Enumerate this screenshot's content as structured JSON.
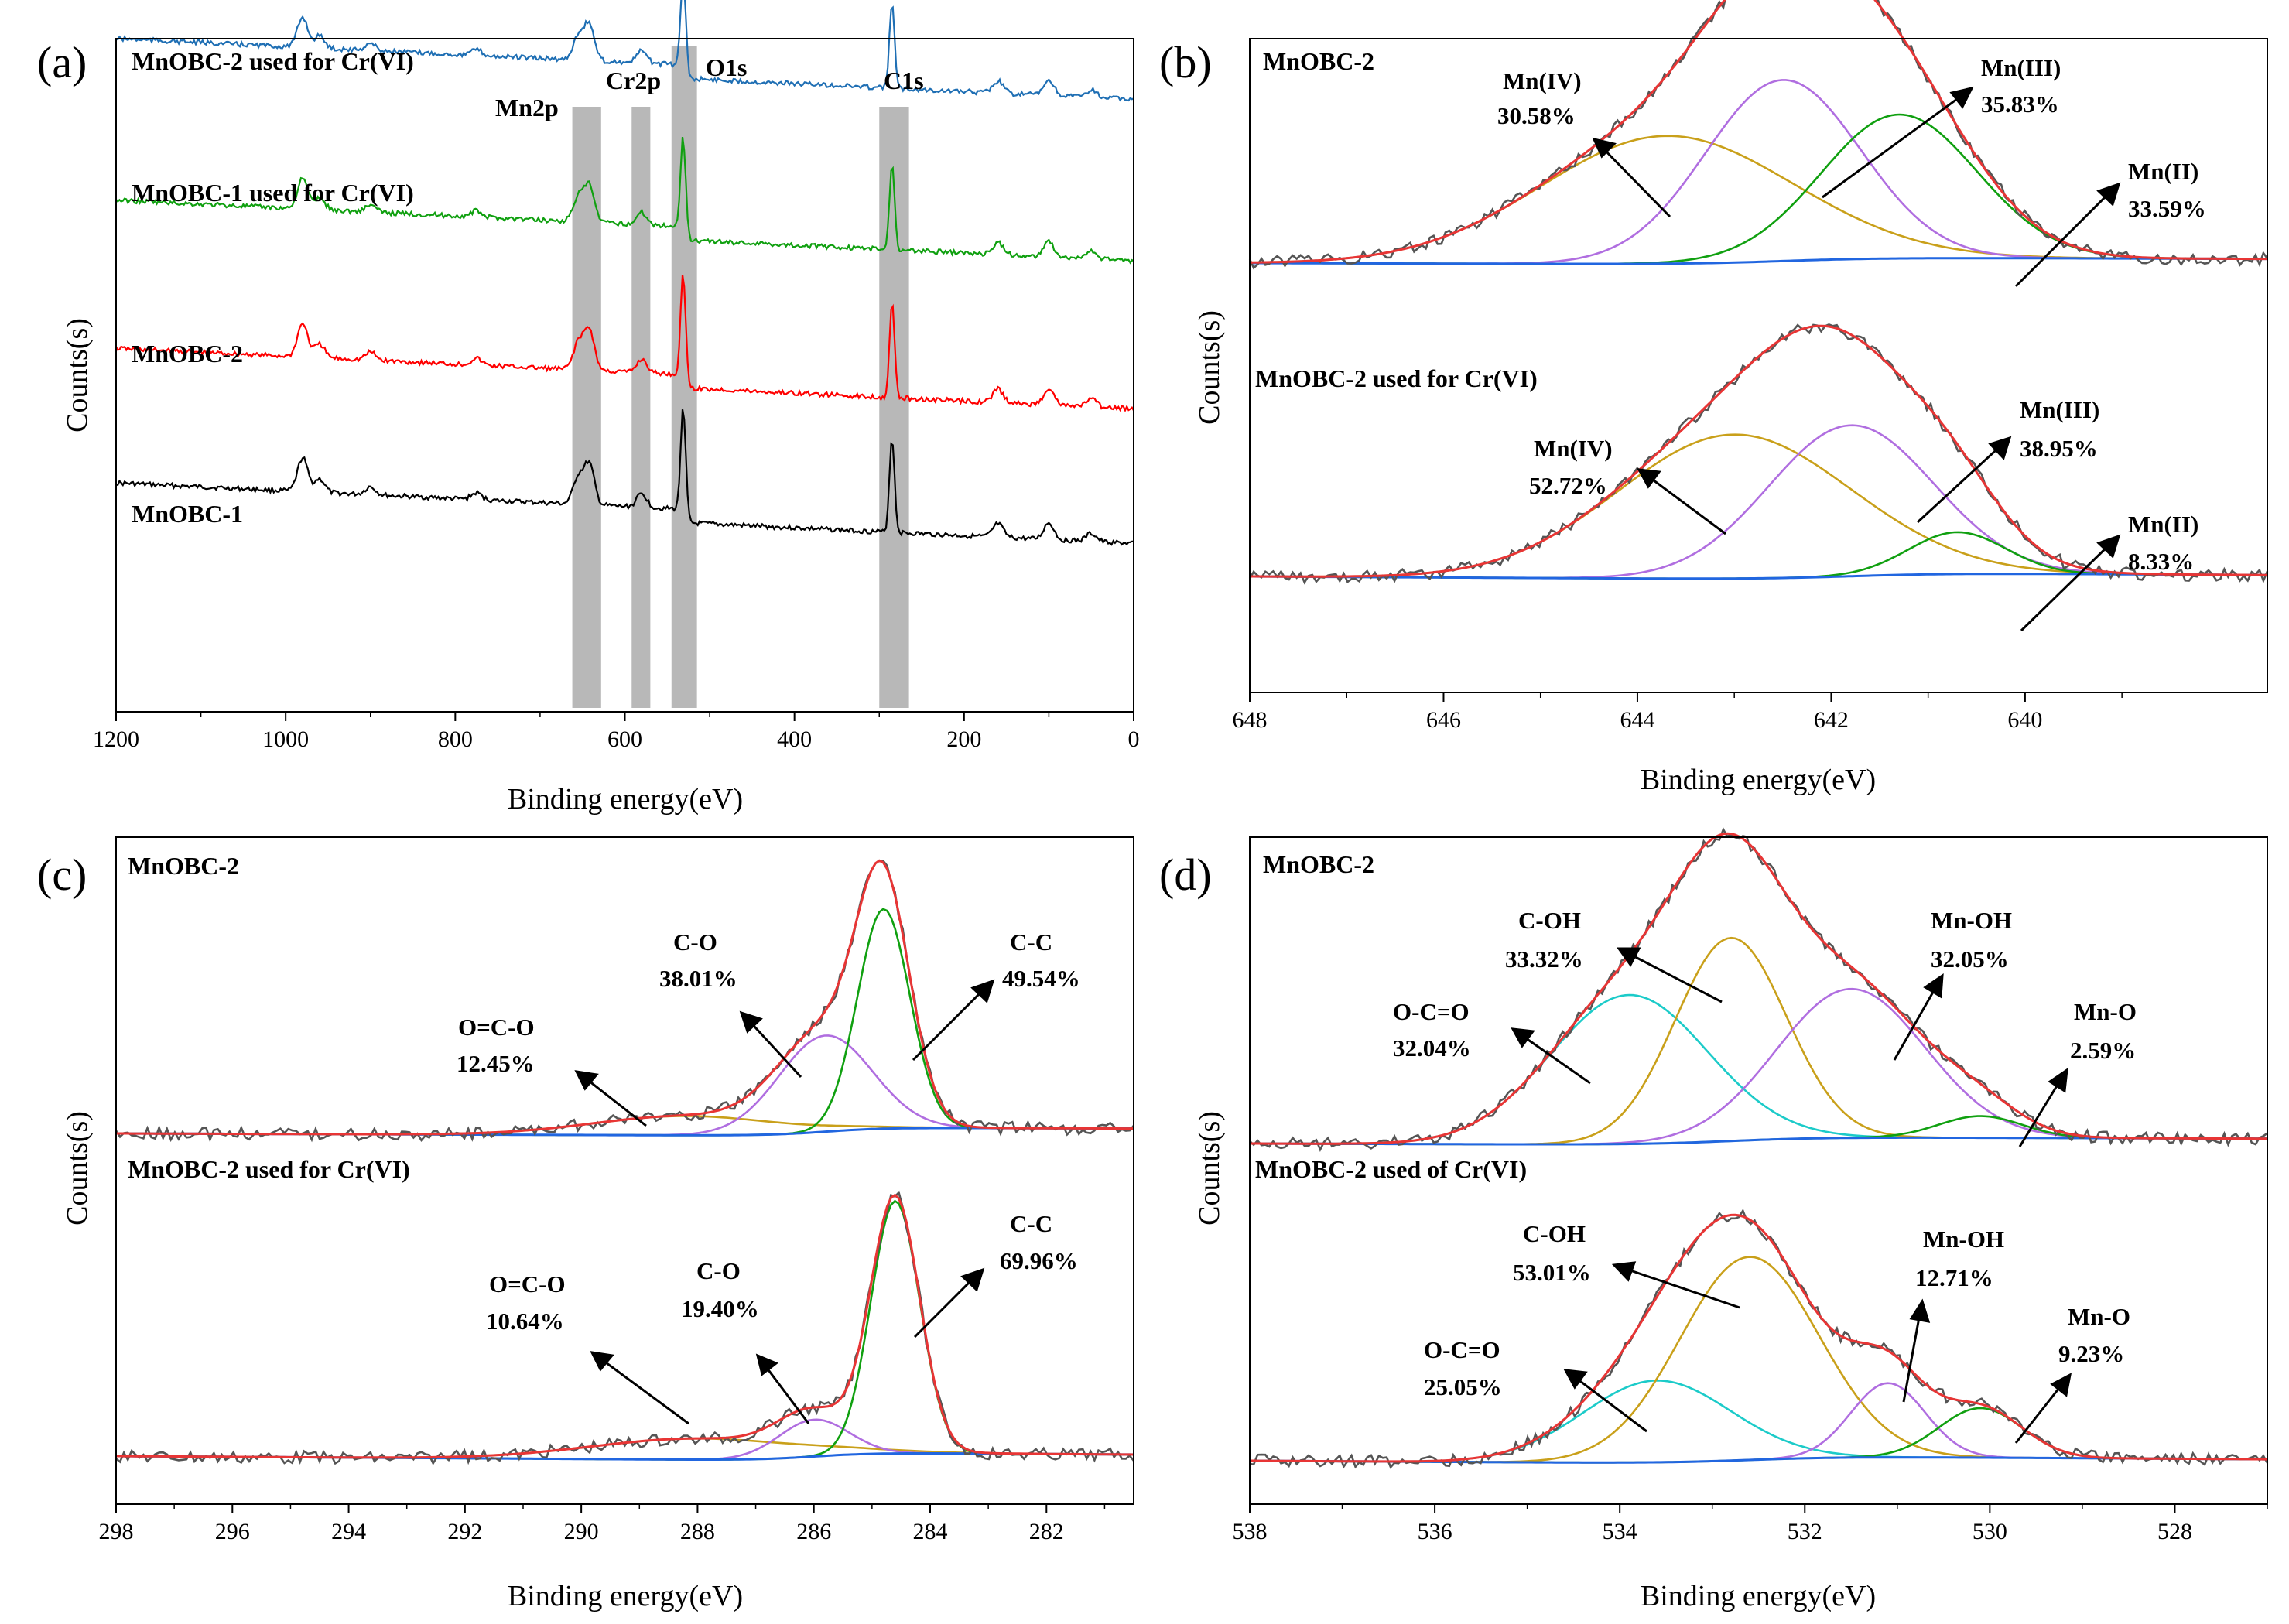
{
  "figure": {
    "colors": {
      "black": "#000000",
      "red": "#ff0000",
      "green": "#10a010",
      "blue": "#1f6fb4",
      "violet": "#b06ee0",
      "gold": "#c9a01a",
      "cyan": "#1ccbc9",
      "baseline": "#2166e0",
      "fit": "#e83535",
      "raw": "#555555",
      "band": "#b8b8b8"
    }
  },
  "chart_data": [
    {
      "panel": "(a)",
      "type": "line",
      "xlabel": "Binding energy(eV)",
      "ylabel": "Counts(s)",
      "xlim": [
        1200,
        0
      ],
      "xticks": [
        1200,
        1000,
        800,
        600,
        400,
        200,
        0
      ],
      "series": [
        {
          "name": "MnOBC-1",
          "color": "#000000",
          "offset": 0.75
        },
        {
          "name": "MnOBC-2",
          "color": "#ff0000",
          "offset": 0.55
        },
        {
          "name": "MnOBC-1 used for Cr(VI)",
          "color": "#10a010",
          "offset": 0.33
        },
        {
          "name": "MnOBC-2 used for Cr(VI)",
          "color": "#1f6fb4",
          "offset": 0.09
        }
      ],
      "bands": [
        {
          "label": "Mn2p",
          "from": 662,
          "to": 628
        },
        {
          "label": "Cr2p",
          "from": 592,
          "to": 570
        },
        {
          "label": "O1s",
          "from": 545,
          "to": 515
        },
        {
          "label": "C1s",
          "from": 300,
          "to": 265
        }
      ],
      "peaks": [
        {
          "x": 980,
          "h": 0.05
        },
        {
          "x": 960,
          "h": 0.02
        },
        {
          "x": 900,
          "h": 0.012
        },
        {
          "x": 775,
          "h": 0.01
        },
        {
          "x": 655,
          "h": 0.04
        },
        {
          "x": 642,
          "h": 0.06
        },
        {
          "x": 580,
          "h": 0.02
        },
        {
          "x": 531,
          "h": 0.16
        },
        {
          "x": 285,
          "h": 0.14
        },
        {
          "x": 160,
          "h": 0.02
        },
        {
          "x": 100,
          "h": 0.025
        },
        {
          "x": 50,
          "h": 0.012
        }
      ]
    },
    {
      "panel": "(b)",
      "type": "line",
      "xlabel": "Binding energy(eV)",
      "ylabel": "Counts(s)",
      "xlim": [
        648,
        637.5
      ],
      "xticks": [
        648,
        646,
        644,
        642,
        640
      ],
      "upper": {
        "sample": "MnOBC-2",
        "components": [
          {
            "name": "Mn(IV)",
            "pct": "30.58%",
            "center": 643.7,
            "height": 0.55,
            "width": 1.3,
            "color": "#c9a01a"
          },
          {
            "name": "Mn(III)",
            "pct": "35.83%",
            "center": 642.5,
            "height": 0.78,
            "width": 0.8,
            "color": "#b06ee0"
          },
          {
            "name": "Mn(II)",
            "pct": "33.59%",
            "center": 641.3,
            "height": 0.62,
            "width": 0.8,
            "color": "#10a010"
          }
        ]
      },
      "lower": {
        "sample": "MnOBC-2 used for Cr(VI)",
        "components": [
          {
            "name": "Mn(IV)",
            "pct": "52.72%",
            "center": 643.0,
            "height": 0.62,
            "width": 1.2,
            "color": "#c9a01a"
          },
          {
            "name": "Mn(III)",
            "pct": "38.95%",
            "center": 641.8,
            "height": 0.65,
            "width": 0.85,
            "color": "#b06ee0"
          },
          {
            "name": "Mn(II)",
            "pct": "8.33%",
            "center": 640.7,
            "height": 0.18,
            "width": 0.5,
            "color": "#10a010"
          }
        ]
      }
    },
    {
      "panel": "(c)",
      "type": "line",
      "xlabel": "Binding energy(eV)",
      "ylabel": "Counts(s)",
      "xlim": [
        298,
        280.5
      ],
      "xticks": [
        298,
        296,
        294,
        292,
        290,
        288,
        286,
        284,
        282
      ],
      "upper": {
        "sample": "MnOBC-2",
        "components": [
          {
            "name": "O=C-O",
            "pct": "12.45%",
            "center": 288.2,
            "height": 0.07,
            "width": 1.6,
            "color": "#c9a01a"
          },
          {
            "name": "C-O",
            "pct": "38.01%",
            "center": 285.8,
            "height": 0.35,
            "width": 0.8,
            "color": "#b06ee0"
          },
          {
            "name": "C-C",
            "pct": "49.54%",
            "center": 284.8,
            "height": 0.8,
            "width": 0.45,
            "color": "#10a010"
          }
        ]
      },
      "lower": {
        "sample": "MnOBC-2 used for Cr(VI)",
        "components": [
          {
            "name": "O=C-O",
            "pct": "10.64%",
            "center": 288.0,
            "height": 0.08,
            "width": 1.8,
            "color": "#c9a01a"
          },
          {
            "name": "C-O",
            "pct": "19.40%",
            "center": 286.0,
            "height": 0.14,
            "width": 0.6,
            "color": "#b06ee0"
          },
          {
            "name": "C-C",
            "pct": "69.96%",
            "center": 284.6,
            "height": 0.96,
            "width": 0.42,
            "color": "#10a010"
          }
        ]
      }
    },
    {
      "panel": "(d)",
      "type": "line",
      "xlabel": "Binding energy(eV)",
      "ylabel": "Counts(s)",
      "xlim": [
        538,
        527
      ],
      "xticks": [
        538,
        536,
        534,
        532,
        530,
        528
      ],
      "upper": {
        "sample": "MnOBC-2",
        "components": [
          {
            "name": "O-C=O",
            "pct": "32.04%",
            "center": 533.9,
            "height": 0.55,
            "width": 0.85,
            "color": "#1ccbc9"
          },
          {
            "name": "C-OH",
            "pct": "33.32%",
            "center": 532.8,
            "height": 0.75,
            "width": 0.6,
            "color": "#c9a01a"
          },
          {
            "name": "Mn-OH",
            "pct": "32.05%",
            "center": 531.5,
            "height": 0.55,
            "width": 0.8,
            "color": "#b06ee0"
          },
          {
            "name": "Mn-O",
            "pct": "2.59%",
            "center": 530.1,
            "height": 0.08,
            "width": 0.45,
            "color": "#10a010"
          }
        ]
      },
      "lower": {
        "sample": "MnOBC-2 used of Cr(VI)",
        "components": [
          {
            "name": "O-C=O",
            "pct": "25.05%",
            "center": 533.6,
            "height": 0.33,
            "width": 0.8,
            "color": "#1ccbc9"
          },
          {
            "name": "C-OH",
            "pct": "53.01%",
            "center": 532.6,
            "height": 0.82,
            "width": 0.75,
            "color": "#c9a01a"
          },
          {
            "name": "Mn-OH",
            "pct": "12.71%",
            "center": 531.1,
            "height": 0.3,
            "width": 0.4,
            "color": "#b06ee0"
          },
          {
            "name": "Mn-O",
            "pct": "9.23%",
            "center": 530.1,
            "height": 0.2,
            "width": 0.45,
            "color": "#10a010"
          }
        ]
      }
    }
  ]
}
